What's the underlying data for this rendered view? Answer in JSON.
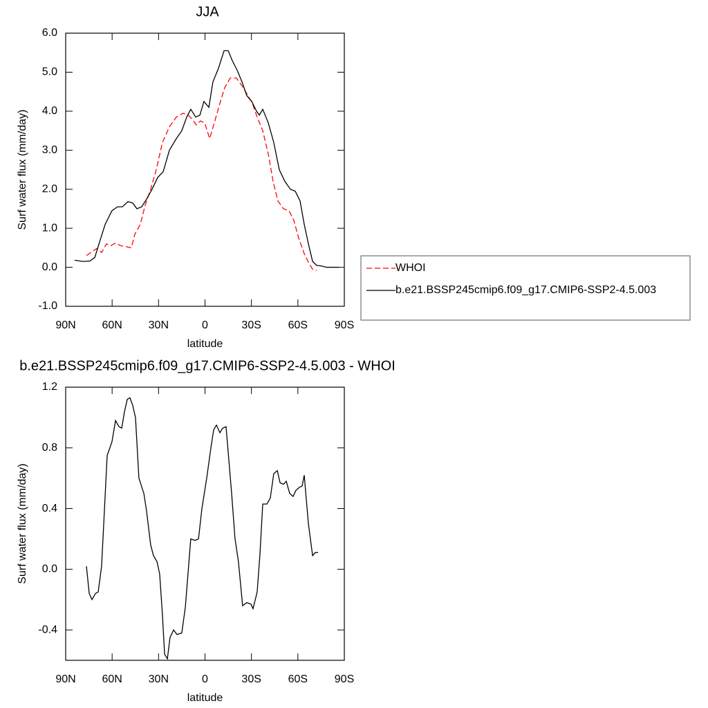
{
  "chart_data": [
    {
      "type": "line",
      "title": "JJA",
      "xlabel": "latitude",
      "ylabel": "Surf water flux (mm/day)",
      "xlim": [
        90,
        -90
      ],
      "xticks": [
        {
          "value": 90,
          "label": "90N"
        },
        {
          "value": 60,
          "label": "60N"
        },
        {
          "value": 30,
          "label": "30N"
        },
        0,
        {
          "value": -30,
          "label": "30S"
        },
        {
          "value": -60,
          "label": "60S"
        },
        {
          "value": -90,
          "label": "90S"
        }
      ],
      "ylim": [
        -1,
        6
      ],
      "yticks": [
        {
          "value": -1,
          "label": "-1.0"
        },
        {
          "value": 0,
          "label": "0.0"
        },
        {
          "value": 1,
          "label": "1.0"
        },
        {
          "value": 2,
          "label": "2.0"
        },
        {
          "value": 3,
          "label": "3.0"
        },
        {
          "value": 4,
          "label": "4.0"
        },
        {
          "value": 5,
          "label": "5.0"
        },
        {
          "value": 6,
          "label": "6.0"
        }
      ],
      "legend": "right",
      "series": [
        {
          "name": "WHOI",
          "color": "#ff0000",
          "style": "dashed",
          "x": [
            76.6,
            73.0,
            69.9,
            66.8,
            63.6,
            61.0,
            57.8,
            54.3,
            51.1,
            47.6,
            45.3,
            41.8,
            38.6,
            35.1,
            31.5,
            27.5,
            23.0,
            18.5,
            14.1,
            10.9,
            8.3,
            5.6,
            2.9,
            0.2,
            -3.0,
            -6.0,
            -9.6,
            -12.7,
            -16.3,
            -20.3,
            -23.9,
            -27.0,
            -30.6,
            -33.7,
            -37.3,
            -40.9,
            -44.0,
            -47.1,
            -50.7,
            -54.3,
            -57.4,
            -60.5,
            -64.1,
            -67.2,
            -69.5,
            -72.1
          ],
          "values": [
            0.3,
            0.4,
            0.48,
            0.38,
            0.6,
            0.55,
            0.62,
            0.55,
            0.53,
            0.5,
            0.85,
            1.1,
            1.6,
            2.0,
            2.5,
            3.2,
            3.6,
            3.85,
            3.95,
            3.9,
            3.8,
            3.65,
            3.75,
            3.7,
            3.3,
            3.7,
            4.2,
            4.6,
            4.85,
            4.85,
            4.65,
            4.45,
            4.2,
            3.85,
            3.5,
            2.9,
            2.2,
            1.7,
            1.5,
            1.45,
            1.2,
            0.75,
            0.35,
            0.1,
            -0.05,
            -0.08
          ]
        },
        {
          "name": "b.e21.BSSP245cmip6.f09_g17.CMIP6-SSP2-4.5.003",
          "color": "#000000",
          "style": "solid",
          "x": [
            84.2,
            78.8,
            74.4,
            71.2,
            67.7,
            64.5,
            60.1,
            56.5,
            53.4,
            49.8,
            46.7,
            44.0,
            40.9,
            37.7,
            34.2,
            30.6,
            27.0,
            23.0,
            18.5,
            15.0,
            11.8,
            9.2,
            6.0,
            3.3,
            0.7,
            -2.5,
            -5.1,
            -8.7,
            -12.3,
            -15.0,
            -17.6,
            -20.8,
            -23.9,
            -27.0,
            -30.2,
            -33.3,
            -35.1,
            -37.3,
            -40.9,
            -44.4,
            -48.0,
            -51.6,
            -55.2,
            -58.3,
            -61.4,
            -64.1,
            -66.8,
            -69.5,
            -72.1,
            -75.7,
            -78.4,
            -82.0,
            -86.4
          ],
          "values": [
            0.18,
            0.15,
            0.16,
            0.25,
            0.7,
            1.1,
            1.45,
            1.55,
            1.55,
            1.68,
            1.65,
            1.5,
            1.55,
            1.75,
            2.0,
            2.3,
            2.45,
            3.0,
            3.3,
            3.5,
            3.85,
            4.05,
            3.85,
            3.9,
            4.25,
            4.1,
            4.75,
            5.1,
            5.55,
            5.55,
            5.3,
            5.05,
            4.75,
            4.4,
            4.25,
            4.0,
            3.9,
            4.05,
            3.7,
            3.2,
            2.5,
            2.2,
            2.0,
            1.95,
            1.7,
            1.1,
            0.6,
            0.15,
            0.05,
            0.03,
            0.0,
            0.0,
            0.0
          ]
        }
      ]
    },
    {
      "type": "line",
      "title": "b.e21.BSSP245cmip6.f09_g17.CMIP6-SSP2-4.5.003 - WHOI",
      "xlabel": "latitude",
      "ylabel": "Surf water flux (mm/day)",
      "xlim": [
        90,
        -90
      ],
      "xticks": [
        {
          "value": 90,
          "label": "90N"
        },
        {
          "value": 60,
          "label": "60N"
        },
        {
          "value": 30,
          "label": "30N"
        },
        0,
        {
          "value": -30,
          "label": "30S"
        },
        {
          "value": -60,
          "label": "60S"
        },
        {
          "value": -90,
          "label": "90S"
        }
      ],
      "ylim": [
        -0.6,
        1.2
      ],
      "yticks": [
        -0.4,
        {
          "value": 0,
          "label": "0.0"
        },
        0.4,
        0.8,
        1.2
      ],
      "series": [
        {
          "color": "#000000",
          "style": "solid",
          "x": [
            76.6,
            74.8,
            73.0,
            70.8,
            69.0,
            66.8,
            63.2,
            60.1,
            57.8,
            55.6,
            53.8,
            52.0,
            50.2,
            48.5,
            46.7,
            44.9,
            42.7,
            39.5,
            37.7,
            35.1,
            33.3,
            31.0,
            29.3,
            27.5,
            26.1,
            24.3,
            22.6,
            20.3,
            18.1,
            15.0,
            12.7,
            9.2,
            6.5,
            4.2,
            2.0,
            -1.1,
            -3.8,
            -5.6,
            -7.4,
            -9.6,
            -11.4,
            -13.6,
            -17.2,
            -19.4,
            -21.6,
            -24.3,
            -27.0,
            -29.7,
            -31.0,
            -33.7,
            -35.5,
            -37.3,
            -40.0,
            -42.2,
            -44.4,
            -46.7,
            -48.5,
            -50.7,
            -52.5,
            -54.7,
            -56.9,
            -58.7,
            -61.0,
            -62.8,
            -64.1,
            -66.8,
            -69.5,
            -71.2,
            -73.0
          ],
          "values": [
            0.02,
            -0.16,
            -0.2,
            -0.16,
            -0.15,
            0.02,
            0.75,
            0.84,
            0.98,
            0.94,
            0.93,
            1.04,
            1.12,
            1.13,
            1.08,
            1.0,
            0.6,
            0.5,
            0.38,
            0.16,
            0.09,
            0.05,
            -0.03,
            -0.3,
            -0.56,
            -0.59,
            -0.45,
            -0.4,
            -0.43,
            -0.42,
            -0.25,
            0.2,
            0.19,
            0.2,
            0.4,
            0.6,
            0.8,
            0.92,
            0.95,
            0.9,
            0.93,
            0.94,
            0.5,
            0.2,
            0.05,
            -0.24,
            -0.22,
            -0.23,
            -0.26,
            -0.15,
            0.1,
            0.43,
            0.43,
            0.47,
            0.63,
            0.65,
            0.57,
            0.56,
            0.58,
            0.5,
            0.48,
            0.52,
            0.54,
            0.55,
            0.62,
            0.3,
            0.09,
            0.11,
            0.11
          ]
        }
      ]
    }
  ]
}
